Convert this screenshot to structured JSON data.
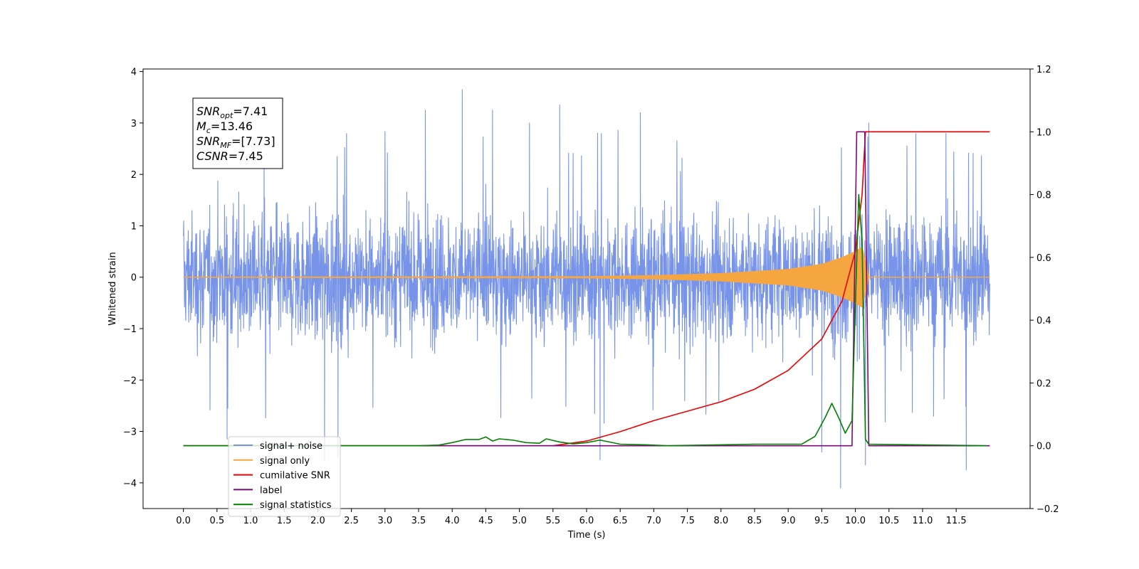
{
  "chart_data": {
    "type": "line",
    "title": "",
    "xlabel": "Time (s)",
    "ylabel": "Whitened strain",
    "xlim": [
      -0.6,
      12.6
    ],
    "ylim": [
      -4.5,
      4.05
    ],
    "ylim_right": [
      -0.2,
      1.2
    ],
    "x_ticks": [
      "0.0",
      "0.5",
      "1.0",
      "1.5",
      "2.0",
      "2.5",
      "3.0",
      "3.5",
      "4.0",
      "4.5",
      "5.0",
      "5.5",
      "6.0",
      "6.5",
      "7.0",
      "7.5",
      "8.0",
      "8.5",
      "9.0",
      "9.5",
      "10.0",
      "10.5",
      "11.0",
      "11.5"
    ],
    "y_ticks_left": [
      "−4",
      "−3",
      "−2",
      "−1",
      "0",
      "1",
      "2",
      "3",
      "4"
    ],
    "y_ticks_right": [
      "−0.2",
      "0.0",
      "0.2",
      "0.4",
      "0.6",
      "0.8",
      "1.0",
      "1.2"
    ],
    "grid": false,
    "legend_position": "lower-left",
    "info_box": {
      "lines": [
        {
          "base": "SNR",
          "sub": "opt",
          "rest": "=7.41"
        },
        {
          "base": "M",
          "sub": "c",
          "rest": "=13.46"
        },
        {
          "base": "SNR",
          "sub": "MF",
          "rest": "=[7.73]"
        },
        {
          "base": "CSNR",
          "sub": "",
          "rest": "=7.45"
        }
      ]
    },
    "series": [
      {
        "name": "signal+ noise",
        "color": "#7794e8",
        "axis": "left",
        "kind": "noise",
        "x_range": [
          0.0,
          12.0
        ],
        "envelope_abs": 2.3,
        "peaks": [
          {
            "x": 0.65,
            "y": -3.15
          },
          {
            "x": 1.2,
            "y": 2.7
          },
          {
            "x": 2.1,
            "y": -3.55
          },
          {
            "x": 2.3,
            "y": -3.5
          },
          {
            "x": 3.6,
            "y": 3.25
          },
          {
            "x": 4.15,
            "y": 3.65
          },
          {
            "x": 4.6,
            "y": 3.25
          },
          {
            "x": 5.15,
            "y": 3.0
          },
          {
            "x": 5.6,
            "y": 3.35
          },
          {
            "x": 6.2,
            "y": -3.55
          },
          {
            "x": 6.8,
            "y": 3.2
          },
          {
            "x": 9.5,
            "y": -3.4
          },
          {
            "x": 9.78,
            "y": -4.1
          },
          {
            "x": 10.15,
            "y": -3.65
          },
          {
            "x": 10.2,
            "y": 3.0
          },
          {
            "x": 11.65,
            "y": -3.75
          }
        ]
      },
      {
        "name": "signal only",
        "color": "#f5a640",
        "axis": "left",
        "kind": "chirp",
        "x_range": [
          0.0,
          12.0
        ],
        "amplitude_points": [
          [
            0.0,
            0.0
          ],
          [
            6.0,
            0.01
          ],
          [
            7.0,
            0.03
          ],
          [
            8.0,
            0.07
          ],
          [
            9.0,
            0.15
          ],
          [
            9.5,
            0.25
          ],
          [
            9.8,
            0.38
          ],
          [
            10.0,
            0.5
          ],
          [
            10.1,
            0.58
          ],
          [
            10.15,
            0.3
          ],
          [
            10.2,
            0.0
          ],
          [
            12.0,
            0.0
          ]
        ]
      },
      {
        "name": "cumilative SNR",
        "color": "#ee0000",
        "axis": "right",
        "x": [
          0.0,
          5.5,
          6.0,
          6.5,
          7.0,
          7.5,
          8.0,
          8.5,
          9.0,
          9.5,
          9.8,
          10.0,
          10.1,
          10.15,
          12.0
        ],
        "values": [
          0.0,
          0.0,
          0.015,
          0.045,
          0.08,
          0.11,
          0.14,
          0.18,
          0.24,
          0.34,
          0.46,
          0.62,
          0.8,
          1.0,
          1.0
        ]
      },
      {
        "name": "label",
        "color": "#7b0a7b",
        "axis": "right",
        "x": [
          0.0,
          9.95,
          10.02,
          10.14,
          10.2,
          12.0
        ],
        "values": [
          0.0,
          0.0,
          1.0,
          1.0,
          0.0,
          0.0
        ]
      },
      {
        "name": "signal statistics",
        "color": "#008000",
        "axis": "right",
        "x": [
          0.0,
          3.5,
          3.8,
          4.0,
          4.2,
          4.4,
          4.5,
          4.6,
          4.7,
          4.9,
          5.1,
          5.3,
          5.4,
          5.6,
          5.8,
          6.0,
          6.2,
          6.5,
          6.9,
          7.2,
          8.5,
          9.2,
          9.4,
          9.55,
          9.65,
          9.75,
          9.85,
          9.95,
          10.0,
          10.05,
          10.1,
          10.15,
          10.2,
          11.95
        ],
        "values": [
          0.0,
          0.0,
          0.002,
          0.01,
          0.02,
          0.02,
          0.028,
          0.015,
          0.022,
          0.018,
          0.01,
          0.008,
          0.022,
          0.012,
          0.006,
          0.01,
          0.018,
          0.005,
          0.003,
          0.0,
          0.005,
          0.005,
          0.03,
          0.09,
          0.135,
          0.09,
          0.04,
          0.08,
          0.45,
          0.8,
          0.65,
          0.02,
          0.005,
          0.0
        ]
      }
    ],
    "legend": [
      "signal+ noise",
      "signal only",
      "cumilative SNR",
      "label",
      "signal statistics"
    ]
  }
}
